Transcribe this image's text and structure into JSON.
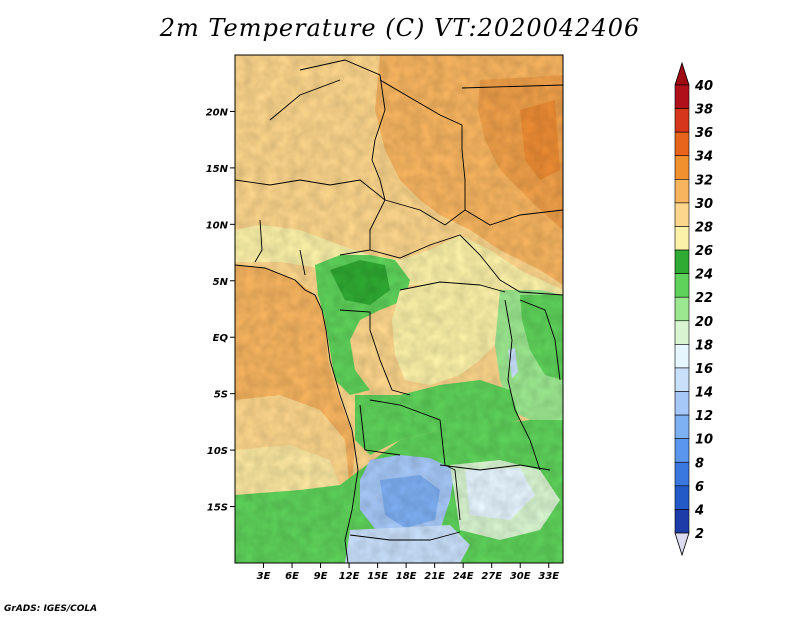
{
  "title": "2m Temperature (C) VT:2020042406",
  "credit": "GrADS: IGES/COLA",
  "map": {
    "lon_range": [
      0,
      34.5
    ],
    "lat_range": [
      -20,
      25
    ],
    "lon_ticks": [
      "3E",
      "6E",
      "9E",
      "12E",
      "15E",
      "18E",
      "21E",
      "24E",
      "27E",
      "30E",
      "33E"
    ],
    "lat_ticks": [
      "20N",
      "15N",
      "10N",
      "5N",
      "EQ",
      "5S",
      "10S",
      "15S"
    ],
    "lat_tick_values": [
      20,
      15,
      10,
      5,
      0,
      -5,
      -10,
      -15
    ],
    "lon_tick_values": [
      3,
      6,
      9,
      12,
      15,
      18,
      21,
      24,
      27,
      30,
      33
    ]
  },
  "colorbar": {
    "labels": [
      "2",
      "4",
      "6",
      "8",
      "10",
      "12",
      "14",
      "16",
      "18",
      "20",
      "22",
      "24",
      "26",
      "28",
      "30",
      "32",
      "34",
      "36",
      "38",
      "40"
    ],
    "colors": [
      "#1a1a8c",
      "#1e3ca8",
      "#2459c8",
      "#3a78e0",
      "#5a96ee",
      "#7eb0f4",
      "#a6c8f8",
      "#c9e0fb",
      "#e6f6ff",
      "#d8f5d0",
      "#9ce890",
      "#5ed25a",
      "#2faa32",
      "#fbf1a8",
      "#fcd68c",
      "#f8b560",
      "#f0902e",
      "#e8641c",
      "#d6361a",
      "#b0101a",
      "#7a0c10"
    ],
    "min_color": "#dcdcf0",
    "max_color": "#a00c14"
  }
}
